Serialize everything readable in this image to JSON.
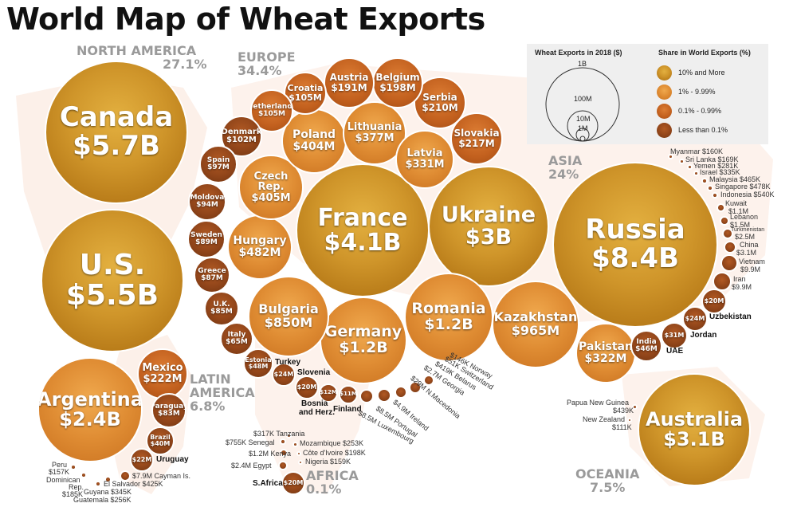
{
  "title": "World Map of Wheat Exports",
  "regions": {
    "north_america": {
      "name": "NORTH AMERICA",
      "share": "27.1%"
    },
    "europe": {
      "name": "EUROPE",
      "share": "34.4%"
    },
    "asia": {
      "name": "ASIA",
      "share": "24%"
    },
    "latin_america": {
      "name1": "LATIN",
      "name2": "AMERICA",
      "share": "6.8%"
    },
    "africa": {
      "name": "AFRICA",
      "share": "0.1%"
    },
    "oceania": {
      "name": "OCEANIA",
      "share": "7.5%"
    }
  },
  "legend": {
    "size_title": "Wheat Exports in 2018 ($)",
    "share_title": "Share in World Exports (%)",
    "sizes": [
      "1B",
      "100M",
      "10M",
      "1M"
    ],
    "tiers": [
      {
        "label": "10% and More",
        "color": "#cf952a"
      },
      {
        "label": "1% - 9.99%",
        "color": "#e49a3e"
      },
      {
        "label": "0.1% - 0.99%",
        "color": "#c2601e"
      },
      {
        "label": "Less than 0.1%",
        "color": "#8f4419"
      }
    ]
  },
  "bubbles": {
    "canada": {
      "name": "Canada",
      "value": "$5.7B"
    },
    "us": {
      "name": "U.S.",
      "value": "$5.5B"
    },
    "argentina": {
      "name": "Argentina",
      "value": "$2.4B"
    },
    "mexico": {
      "name": "Mexico",
      "value": "$222M"
    },
    "paraguay": {
      "name": "Paraguay",
      "value": "$83M"
    },
    "brazil": {
      "name": "Brazil",
      "value": "$40M"
    },
    "uruguay_v": {
      "value": "$22M"
    },
    "france": {
      "name": "France",
      "value": "$4.1B"
    },
    "ukraine": {
      "name": "Ukraine",
      "value": "$3B"
    },
    "russia": {
      "name": "Russia",
      "value": "$8.4B"
    },
    "germany": {
      "name": "Germany",
      "value": "$1.2B"
    },
    "romania": {
      "name": "Romania",
      "value": "$1.2B"
    },
    "kazakhstan": {
      "name": "Kazakhstan",
      "value": "$965M"
    },
    "bulgaria": {
      "name": "Bulgaria",
      "value": "$850M"
    },
    "hungary": {
      "name": "Hungary",
      "value": "$482M"
    },
    "czech": {
      "name": "Czech Rep.",
      "value": "$405M"
    },
    "poland": {
      "name": "Poland",
      "value": "$404M"
    },
    "lithuania": {
      "name": "Lithuania",
      "value": "$377M"
    },
    "latvia": {
      "name": "Latvia",
      "value": "$331M"
    },
    "pakistan": {
      "name": "Pakistan",
      "value": "$322M"
    },
    "australia": {
      "name": "Australia",
      "value": "$3.1B"
    },
    "slovakia": {
      "name": "Slovakia",
      "value": "$217M"
    },
    "serbia": {
      "name": "Serbia",
      "value": "$210M"
    },
    "belgium": {
      "name": "Belgium",
      "value": "$198M"
    },
    "austria": {
      "name": "Austria",
      "value": "$191M"
    },
    "croatia": {
      "name": "Croatia",
      "value": "$105M"
    },
    "netherlands": {
      "name": "Netherlands",
      "value": "$105M"
    },
    "denmark": {
      "name": "Denmark",
      "value": "$102M"
    },
    "spain": {
      "name": "Spain",
      "value": "$97M"
    },
    "moldova": {
      "name": "Moldova",
      "value": "$94M"
    },
    "sweden": {
      "name": "Sweden",
      "value": "$89M"
    },
    "greece": {
      "name": "Greece",
      "value": "$87M"
    },
    "uk": {
      "name": "U.K.",
      "value": "$85M"
    },
    "italy": {
      "name": "Italy",
      "value": "$65M"
    },
    "estonia": {
      "name": "Estonia",
      "value": "$48M"
    },
    "india": {
      "name": "India",
      "value": "$46M"
    },
    "turkey_v": {
      "value": "$24M"
    },
    "uzbek_v": {
      "value": "$24M"
    },
    "jordan_v": {
      "value": "$31M"
    },
    "uae_v": {
      "value": "$20M"
    },
    "slovenia_v": {
      "value": "$20M"
    },
    "bosnia_v": {
      "value": "$12M"
    },
    "finland_v": {
      "value": "$11M"
    },
    "safrica_v": {
      "value": "$20M"
    }
  },
  "labels": {
    "uruguay": "Uruguay",
    "cayman": "$7.9M Cayman Is.",
    "el_salvador": "El Salvador $425K",
    "guyana": "Guyana $345K",
    "guatemala": "Guatemala $256K",
    "peru": "Peru",
    "peru_v": "$157K",
    "dominican": "Dominican",
    "dominican2": "Rep.",
    "dominican_v": "$185K",
    "turkey": "Turkey",
    "slovenia": "Slovenia",
    "bosnia1": "Bosnia",
    "bosnia2": "and Herz.",
    "finland": "Finland",
    "luxembourg": "$8.5M Luxembourg",
    "portugal": "$8.5M Portugal",
    "ireland": "$4.9M Ireland",
    "nmacedonia": "$29M N.Macedonia",
    "georgia": "$2.7M Georgia",
    "belarus": "$419K Belarus",
    "switzerland": "$51K Switzerland",
    "norway": "$146K Norway",
    "uzbekistan": "Uzbekistan",
    "jordan": "Jordan",
    "uae": "UAE",
    "myanmar": "Myanmar $160K",
    "srilanka": "Sri Lanka $169K",
    "yemen": "Yemen $281K",
    "israel": "Israel $335K",
    "malaysia": "Malaysia $465K",
    "singapore": "Singapore $478K",
    "indonesia": "Indonesia $540K",
    "kuwait": "Kuwait",
    "kuwait_v": "$1.1M",
    "lebanon": "Lebanon",
    "lebanon_v": "$1.5M",
    "turkmenistan": "Turkmenistan",
    "turkmenistan_v": "$2.5M",
    "china": "China",
    "china_v": "$3.1M",
    "vietnam": "Vietnam",
    "vietnam_v": "$9.9M",
    "iran": "Iran",
    "iran_v": "$9.9M",
    "png": "Papua New Guinea",
    "png_v": "$439K",
    "nz": "New Zealand",
    "nz_v": "$111K",
    "tanzania": "$317K Tanzania",
    "senegal": "$755K Senegal",
    "mozambique": "Mozambique $253K",
    "cotedivoire": "Côte d'Ivoire $198K",
    "kenya": "$1.2M Kenya",
    "nigeria": "Nigeria $159K",
    "egypt": "$2.4M Egypt",
    "safrica": "S.Africa"
  }
}
